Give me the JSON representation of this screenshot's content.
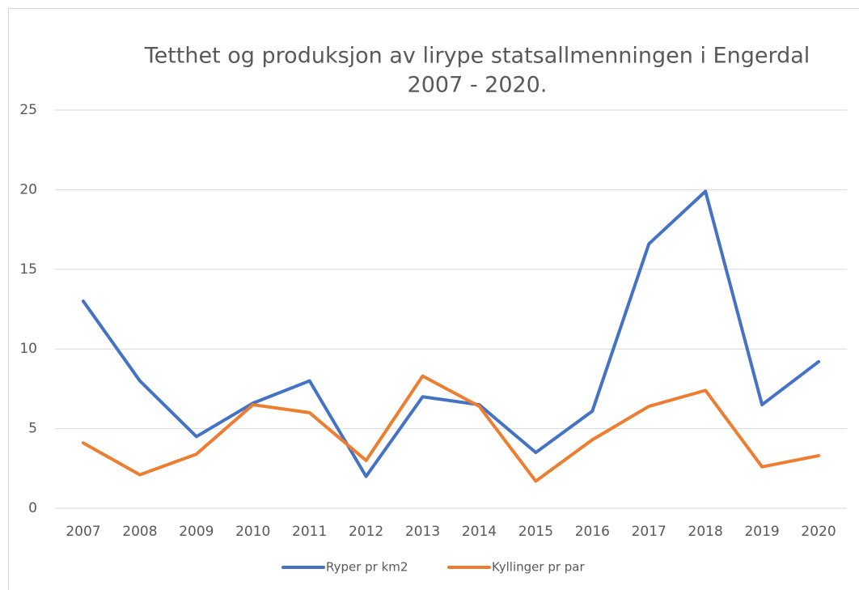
{
  "chart_data": {
    "type": "line",
    "title": [
      "Tetthet og produksjon av lirype statsallmenningen i Engerdal",
      "2007 - 2020."
    ],
    "categories": [
      "2007",
      "2008",
      "2009",
      "2010",
      "2011",
      "2012",
      "2013",
      "2014",
      "2015",
      "2016",
      "2017",
      "2018",
      "2019",
      "2020"
    ],
    "series": [
      {
        "name": "Ryper pr km2",
        "color": "#4472c4",
        "values": [
          13.0,
          8.0,
          4.5,
          6.6,
          8.0,
          2.0,
          7.0,
          6.5,
          3.5,
          6.1,
          16.6,
          19.9,
          6.5,
          9.2
        ]
      },
      {
        "name": "Kyllinger pr par",
        "color": "#ed7d31",
        "values": [
          4.1,
          2.1,
          3.4,
          6.5,
          6.0,
          3.0,
          8.3,
          6.4,
          1.7,
          4.3,
          6.4,
          7.4,
          2.6,
          3.3
        ]
      }
    ],
    "ylim": [
      0,
      25
    ],
    "yticks": [
      0,
      5,
      10,
      15,
      20,
      25
    ],
    "grid": true,
    "legend": "bottom"
  }
}
